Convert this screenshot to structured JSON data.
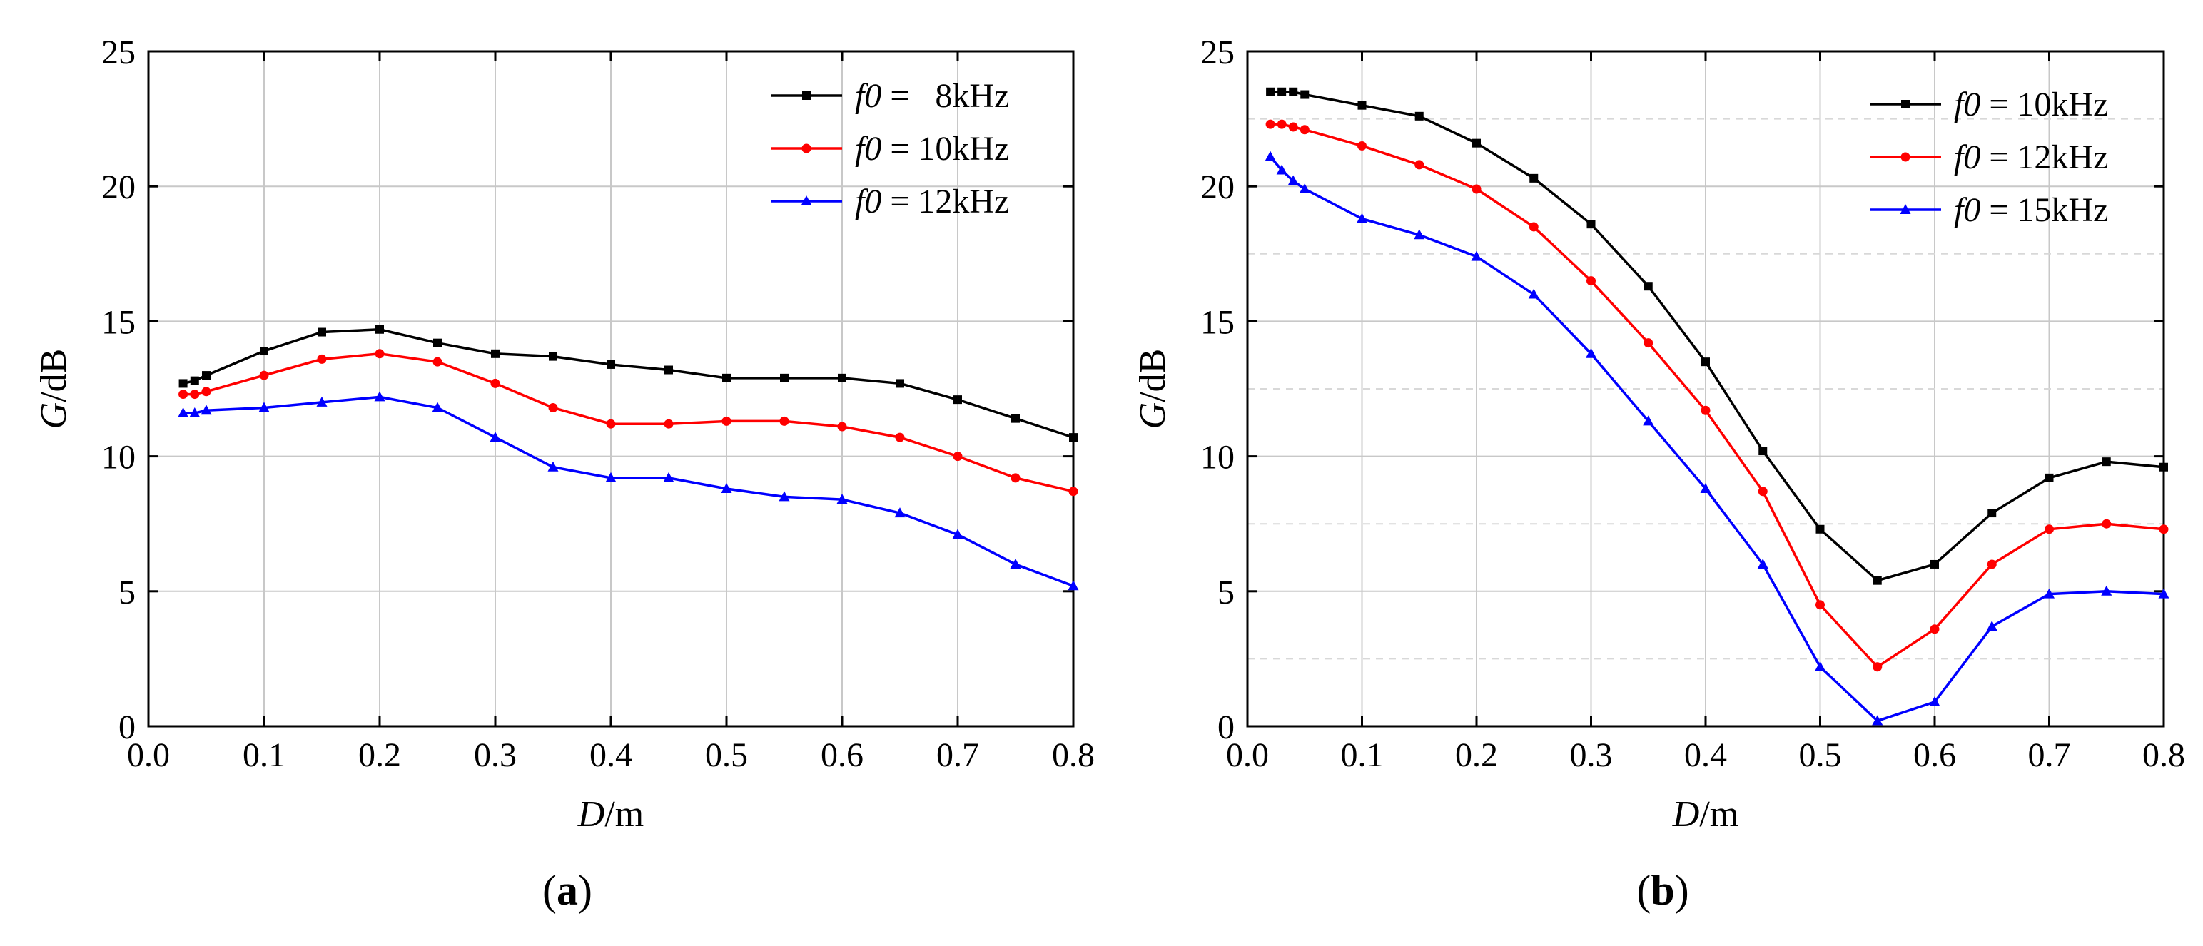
{
  "chart_data": [
    {
      "panel": "a",
      "type": "line",
      "xlabel_var": "D",
      "xlabel_unit": "/m",
      "ylabel_var": "G",
      "ylabel_unit": "/dB",
      "xlim": [
        0.0,
        0.8
      ],
      "ylim": [
        0,
        25
      ],
      "xticks": [
        "0.0",
        "0.1",
        "0.2",
        "0.3",
        "0.4",
        "0.5",
        "0.6",
        "0.7",
        "0.8"
      ],
      "yticks": [
        "0",
        "5",
        "10",
        "15",
        "20",
        "25"
      ],
      "grid": true,
      "legend_position": "top-right",
      "series": [
        {
          "name_var": "f0",
          "name_value": " =   8kHz",
          "color": "#000000",
          "marker": "square",
          "x": [
            0.03,
            0.04,
            0.05,
            0.1,
            0.15,
            0.2,
            0.25,
            0.3,
            0.35,
            0.4,
            0.45,
            0.5,
            0.55,
            0.6,
            0.65,
            0.7,
            0.75,
            0.8
          ],
          "y": [
            12.7,
            12.8,
            13.0,
            13.9,
            14.6,
            14.7,
            14.2,
            13.8,
            13.7,
            13.4,
            13.2,
            12.9,
            12.9,
            12.9,
            12.7,
            12.1,
            11.4,
            10.7
          ]
        },
        {
          "name_var": "f0",
          "name_value": " = 10kHz",
          "color": "#ff0000",
          "marker": "circle",
          "x": [
            0.03,
            0.04,
            0.05,
            0.1,
            0.15,
            0.2,
            0.25,
            0.3,
            0.35,
            0.4,
            0.45,
            0.5,
            0.55,
            0.6,
            0.65,
            0.7,
            0.75,
            0.8
          ],
          "y": [
            12.3,
            12.3,
            12.4,
            13.0,
            13.6,
            13.8,
            13.5,
            12.7,
            11.8,
            11.2,
            11.2,
            11.3,
            11.3,
            11.1,
            10.7,
            10.0,
            9.2,
            8.7
          ]
        },
        {
          "name_var": "f0",
          "name_value": " = 12kHz",
          "color": "#0000ff",
          "marker": "triangle",
          "x": [
            0.03,
            0.04,
            0.05,
            0.1,
            0.15,
            0.2,
            0.25,
            0.3,
            0.35,
            0.4,
            0.45,
            0.5,
            0.55,
            0.6,
            0.65,
            0.7,
            0.75,
            0.8
          ],
          "y": [
            11.6,
            11.6,
            11.7,
            11.8,
            12.0,
            12.2,
            11.8,
            10.7,
            9.6,
            9.2,
            9.2,
            8.8,
            8.5,
            8.4,
            7.9,
            7.1,
            6.0,
            5.2
          ]
        }
      ],
      "caption": "(a)"
    },
    {
      "panel": "b",
      "type": "line",
      "xlabel_var": "D",
      "xlabel_unit": "/m",
      "ylabel_var": "G",
      "ylabel_unit": "/dB",
      "xlim": [
        0.0,
        0.8
      ],
      "ylim": [
        0,
        25
      ],
      "xticks": [
        "0.0",
        "0.1",
        "0.2",
        "0.3",
        "0.4",
        "0.5",
        "0.6",
        "0.7",
        "0.8"
      ],
      "yticks": [
        "0",
        "5",
        "10",
        "15",
        "20",
        "25"
      ],
      "grid": true,
      "legend_position": "top-right",
      "series": [
        {
          "name_var": "f0",
          "name_value": " = 10kHz",
          "color": "#000000",
          "marker": "square",
          "x": [
            0.02,
            0.03,
            0.04,
            0.05,
            0.1,
            0.15,
            0.2,
            0.25,
            0.3,
            0.35,
            0.4,
            0.45,
            0.5,
            0.55,
            0.6,
            0.65,
            0.7,
            0.75,
            0.8
          ],
          "y": [
            23.5,
            23.5,
            23.5,
            23.4,
            23.0,
            22.6,
            21.6,
            20.3,
            18.6,
            16.3,
            13.5,
            10.2,
            7.3,
            5.4,
            6.0,
            7.9,
            9.2,
            9.8,
            9.6
          ]
        },
        {
          "name_var": "f0",
          "name_value": " = 12kHz",
          "color": "#ff0000",
          "marker": "circle",
          "x": [
            0.02,
            0.03,
            0.04,
            0.05,
            0.1,
            0.15,
            0.2,
            0.25,
            0.3,
            0.35,
            0.4,
            0.45,
            0.5,
            0.55,
            0.6,
            0.65,
            0.7,
            0.75,
            0.8
          ],
          "y": [
            22.3,
            22.3,
            22.2,
            22.1,
            21.5,
            20.8,
            19.9,
            18.5,
            16.5,
            14.2,
            11.7,
            8.7,
            4.5,
            2.2,
            3.6,
            6.0,
            7.3,
            7.5,
            7.3
          ]
        },
        {
          "name_var": "f0",
          "name_value": " = 15kHz",
          "color": "#0000ff",
          "marker": "triangle",
          "x": [
            0.02,
            0.03,
            0.04,
            0.05,
            0.1,
            0.15,
            0.2,
            0.25,
            0.3,
            0.35,
            0.4,
            0.45,
            0.5,
            0.55,
            0.6,
            0.65,
            0.7,
            0.75,
            0.8
          ],
          "y": [
            21.1,
            20.6,
            20.2,
            19.9,
            18.8,
            18.2,
            17.4,
            16.0,
            13.8,
            11.3,
            8.8,
            6.0,
            2.2,
            0.2,
            0.9,
            3.7,
            4.9,
            5.0,
            4.9
          ]
        }
      ],
      "caption": "(b)"
    }
  ]
}
